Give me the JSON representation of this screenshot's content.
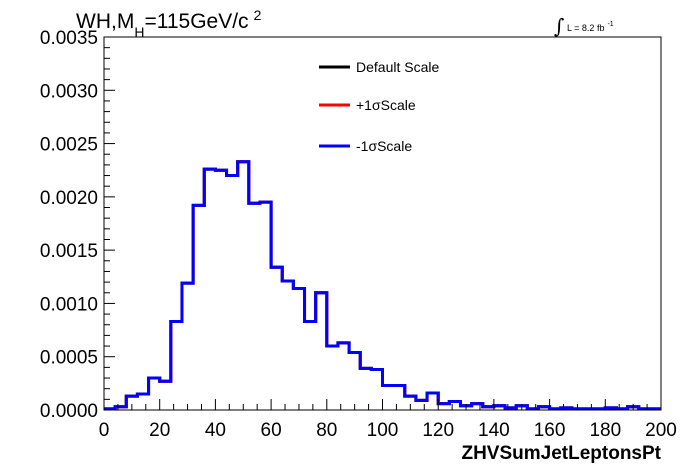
{
  "chart_data": {
    "type": "line",
    "title": "WH,M_H=115GeV/c^2",
    "title_parts": {
      "main": "WH,M",
      "sub": "H",
      "rest": "=115GeV/c",
      "sup": "2"
    },
    "lumi_parts": {
      "integral": "∫",
      "text": "L = 8.2 fb",
      "sup": "-1"
    },
    "xlabel": "ZHVSumJetLeptonsPt",
    "ylabel": "",
    "xlim": [
      0,
      200
    ],
    "ylim": [
      0,
      0.0035
    ],
    "x_ticks": [
      "0",
      "20",
      "40",
      "60",
      "80",
      "100",
      "120",
      "140",
      "160",
      "180",
      "200"
    ],
    "y_ticks": [
      "0.0000",
      "0.0005",
      "0.0010",
      "0.0015",
      "0.0020",
      "0.0025",
      "0.0030",
      "0.0035"
    ],
    "grid": false,
    "legend_position": "top-center",
    "bin_width": 4,
    "bin_edges_start": 0,
    "series": [
      {
        "name": "Default Scale",
        "color": "#000000",
        "values": [
          1e-05,
          3e-05,
          0.00013,
          0.00015,
          0.0003,
          0.00027,
          0.00083,
          0.00119,
          0.00192,
          0.00226,
          0.00225,
          0.0022,
          0.00233,
          0.00194,
          0.00195,
          0.00134,
          0.00121,
          0.00114,
          0.00083,
          0.0011,
          0.0006,
          0.00063,
          0.00054,
          0.00039,
          0.00038,
          0.00023,
          0.00023,
          0.00013,
          9e-05,
          0.00016,
          6e-05,
          8e-05,
          4e-05,
          6e-05,
          3e-05,
          4e-05,
          2e-05,
          4e-05,
          1e-05,
          3e-05,
          1e-05,
          2e-05,
          1e-05,
          1e-05,
          1e-05,
          2e-05,
          1e-05,
          3e-05,
          1e-05,
          1e-05
        ]
      },
      {
        "name": "+1σScale",
        "color": "#ff0000",
        "values": [
          1e-05,
          3e-05,
          0.00013,
          0.00015,
          0.0003,
          0.00027,
          0.00083,
          0.00119,
          0.00192,
          0.00226,
          0.00225,
          0.0022,
          0.00233,
          0.00194,
          0.00195,
          0.00134,
          0.00121,
          0.00114,
          0.00083,
          0.0011,
          0.0006,
          0.00063,
          0.00054,
          0.00039,
          0.00038,
          0.00023,
          0.00023,
          0.00013,
          9e-05,
          0.00016,
          6e-05,
          8e-05,
          4e-05,
          6e-05,
          3e-05,
          4e-05,
          2e-05,
          4e-05,
          1e-05,
          3e-05,
          1e-05,
          2e-05,
          1e-05,
          1e-05,
          1e-05,
          2e-05,
          1e-05,
          3e-05,
          1e-05,
          1e-05
        ]
      },
      {
        "name": "-1σScale",
        "color": "#0000ff",
        "values": [
          1e-05,
          3e-05,
          0.00013,
          0.00015,
          0.0003,
          0.00027,
          0.00083,
          0.00119,
          0.00192,
          0.00226,
          0.00225,
          0.0022,
          0.00233,
          0.00194,
          0.00195,
          0.00134,
          0.00121,
          0.00114,
          0.00083,
          0.0011,
          0.0006,
          0.00063,
          0.00054,
          0.00039,
          0.00038,
          0.00023,
          0.00023,
          0.00013,
          9e-05,
          0.00016,
          6e-05,
          8e-05,
          4e-05,
          6e-05,
          3e-05,
          4e-05,
          2e-05,
          4e-05,
          1e-05,
          3e-05,
          1e-05,
          2e-05,
          1e-05,
          1e-05,
          1e-05,
          2e-05,
          1e-05,
          3e-05,
          1e-05,
          1e-05
        ]
      }
    ]
  }
}
